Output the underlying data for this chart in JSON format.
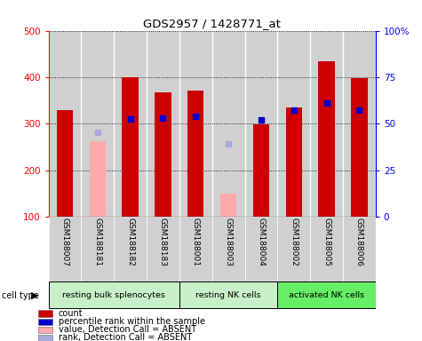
{
  "title": "GDS2957 / 1428771_at",
  "samples": [
    "GSM188007",
    "GSM188181",
    "GSM188182",
    "GSM188183",
    "GSM188001",
    "GSM188003",
    "GSM188004",
    "GSM188002",
    "GSM188005",
    "GSM188006"
  ],
  "count_values": [
    330,
    null,
    400,
    367,
    372,
    null,
    298,
    335,
    435,
    398
  ],
  "count_absent": [
    null,
    263,
    null,
    null,
    null,
    150,
    null,
    null,
    null,
    null
  ],
  "rank_values": [
    null,
    null,
    310,
    312,
    316,
    null,
    308,
    330,
    344,
    330
  ],
  "rank_absent": [
    null,
    282,
    null,
    null,
    null,
    256,
    null,
    null,
    null,
    null
  ],
  "cell_groups": [
    {
      "label": "resting bulk splenocytes",
      "start": 0,
      "end": 3,
      "color": "#c8f0c8"
    },
    {
      "label": "resting NK cells",
      "start": 4,
      "end": 6,
      "color": "#c8f0c8"
    },
    {
      "label": "activated NK cells",
      "start": 7,
      "end": 9,
      "color": "#66ee66"
    }
  ],
  "ylim": [
    100,
    500
  ],
  "yticks": [
    100,
    200,
    300,
    400,
    500
  ],
  "y2lim": [
    0,
    100
  ],
  "y2ticks": [
    0,
    25,
    50,
    75,
    100
  ],
  "bar_width": 0.5,
  "bar_color_present": "#cc0000",
  "bar_color_absent": "#ffaaaa",
  "dot_color_present": "#0000cc",
  "dot_color_absent": "#aaaadd",
  "dot_size": 25,
  "grid_color": "#000000",
  "plot_bg": "#ffffff",
  "sample_bg": "#d0d0d0",
  "legend_items": [
    {
      "label": "count",
      "color": "#cc0000"
    },
    {
      "label": "percentile rank within the sample",
      "color": "#0000cc"
    },
    {
      "label": "value, Detection Call = ABSENT",
      "color": "#ffaaaa"
    },
    {
      "label": "rank, Detection Call = ABSENT",
      "color": "#aaaadd"
    }
  ]
}
